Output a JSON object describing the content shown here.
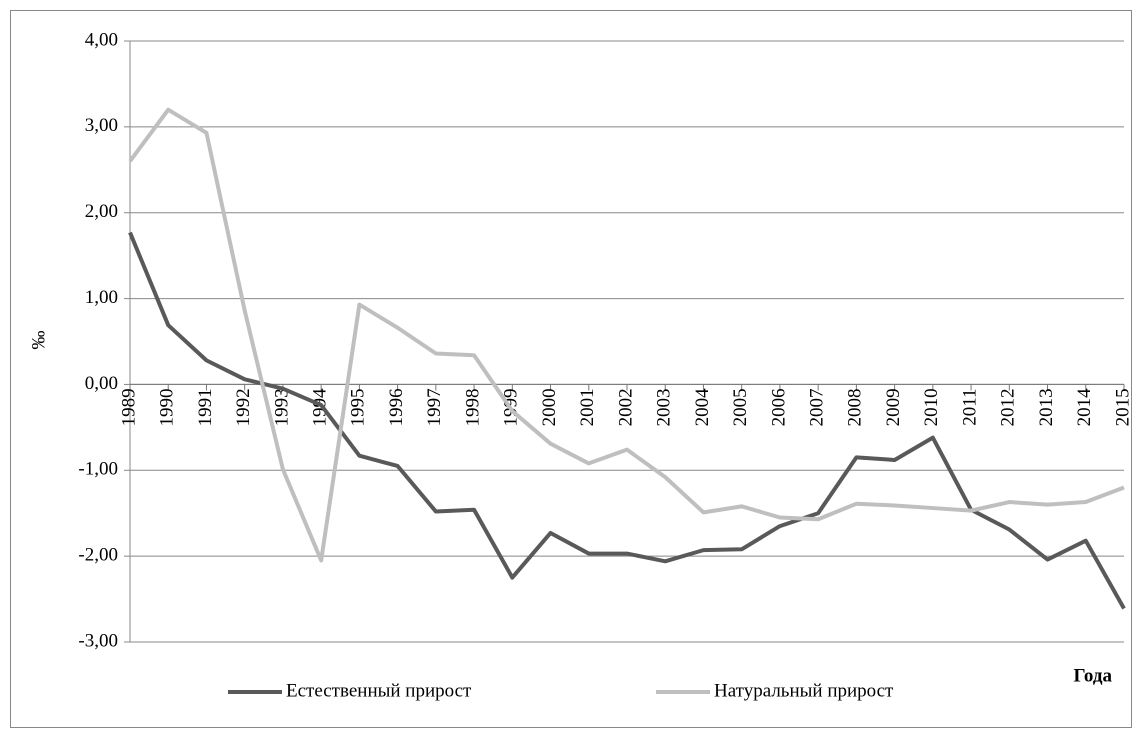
{
  "chart_data": {
    "type": "line",
    "y_label": "‰",
    "x_label": "Года",
    "categories": [
      "1989",
      "1990",
      "1991",
      "1992",
      "1993",
      "1994",
      "1995",
      "1996",
      "1997",
      "1998",
      "1999",
      "2000",
      "2001",
      "2002",
      "2003",
      "2004",
      "2005",
      "2006",
      "2007",
      "2008",
      "2009",
      "2010",
      "2011",
      "2012",
      "2013",
      "2014",
      "2015"
    ],
    "series": [
      {
        "name": "Естественный прирост",
        "color": "#595959",
        "values": [
          1.77,
          0.69,
          0.28,
          0.06,
          -0.05,
          -0.24,
          -0.83,
          -0.95,
          -1.48,
          -1.46,
          -2.25,
          -1.73,
          -1.97,
          -1.97,
          -2.06,
          -1.93,
          -1.92,
          -1.65,
          -1.5,
          -0.85,
          -0.88,
          -0.62,
          -1.46,
          -1.69,
          -2.04,
          -1.82,
          -2.61
        ]
      },
      {
        "name": "Натуральный прирост",
        "color": "#bfbfbf",
        "values": [
          2.6,
          3.2,
          2.93,
          0.86,
          -0.99,
          -2.05,
          0.93,
          0.66,
          0.36,
          0.34,
          -0.31,
          -0.69,
          -0.92,
          -0.76,
          -1.08,
          -1.49,
          -1.42,
          -1.55,
          -1.57,
          -1.39,
          -1.41,
          -1.44,
          -1.47,
          -1.37,
          -1.4,
          -1.37,
          -1.2
        ]
      }
    ],
    "ylim": [
      -3,
      4
    ],
    "yticks": [
      {
        "value": -3,
        "label": "-3,00"
      },
      {
        "value": -2,
        "label": "-2,00"
      },
      {
        "value": -1,
        "label": "-1,00"
      },
      {
        "value": 0,
        "label": "0,00"
      },
      {
        "value": 1,
        "label": "1,00"
      },
      {
        "value": 2,
        "label": "2,00"
      },
      {
        "value": 3,
        "label": "3,00"
      },
      {
        "value": 4,
        "label": "4,00"
      }
    ],
    "grid": true
  }
}
